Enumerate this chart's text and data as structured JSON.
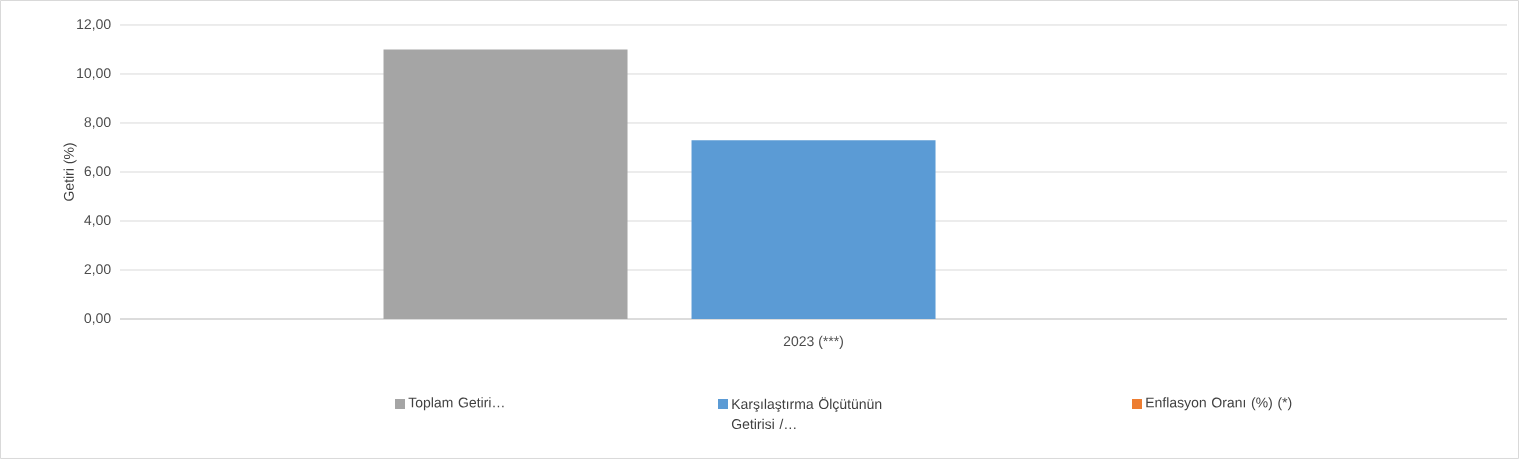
{
  "chart_data": {
    "type": "bar",
    "ylabel": "Getiri (%)",
    "categories": [
      "2023 (***)"
    ],
    "series": [
      {
        "name": "Toplam Getiri…",
        "color": "#a5a5a5",
        "values": [
          11.0
        ]
      },
      {
        "name": "Karşılaştırma Ölçütünün Getirisi /…",
        "color": "#5b9bd5",
        "values": [
          7.3
        ]
      },
      {
        "name": "Enflasyon Oranı (%) (*)",
        "color": "#ed7d31",
        "values": [
          null
        ]
      }
    ],
    "ylim": [
      0,
      12
    ],
    "yticks": [
      {
        "value": 0,
        "label": "0,00"
      },
      {
        "value": 2,
        "label": "2,00"
      },
      {
        "value": 4,
        "label": "4,00"
      },
      {
        "value": 6,
        "label": "6,00"
      },
      {
        "value": 8,
        "label": "8,00"
      },
      {
        "value": 10,
        "label": "10,00"
      },
      {
        "value": 12,
        "label": "12,00"
      }
    ],
    "grid": "y",
    "legend": "bottom"
  }
}
